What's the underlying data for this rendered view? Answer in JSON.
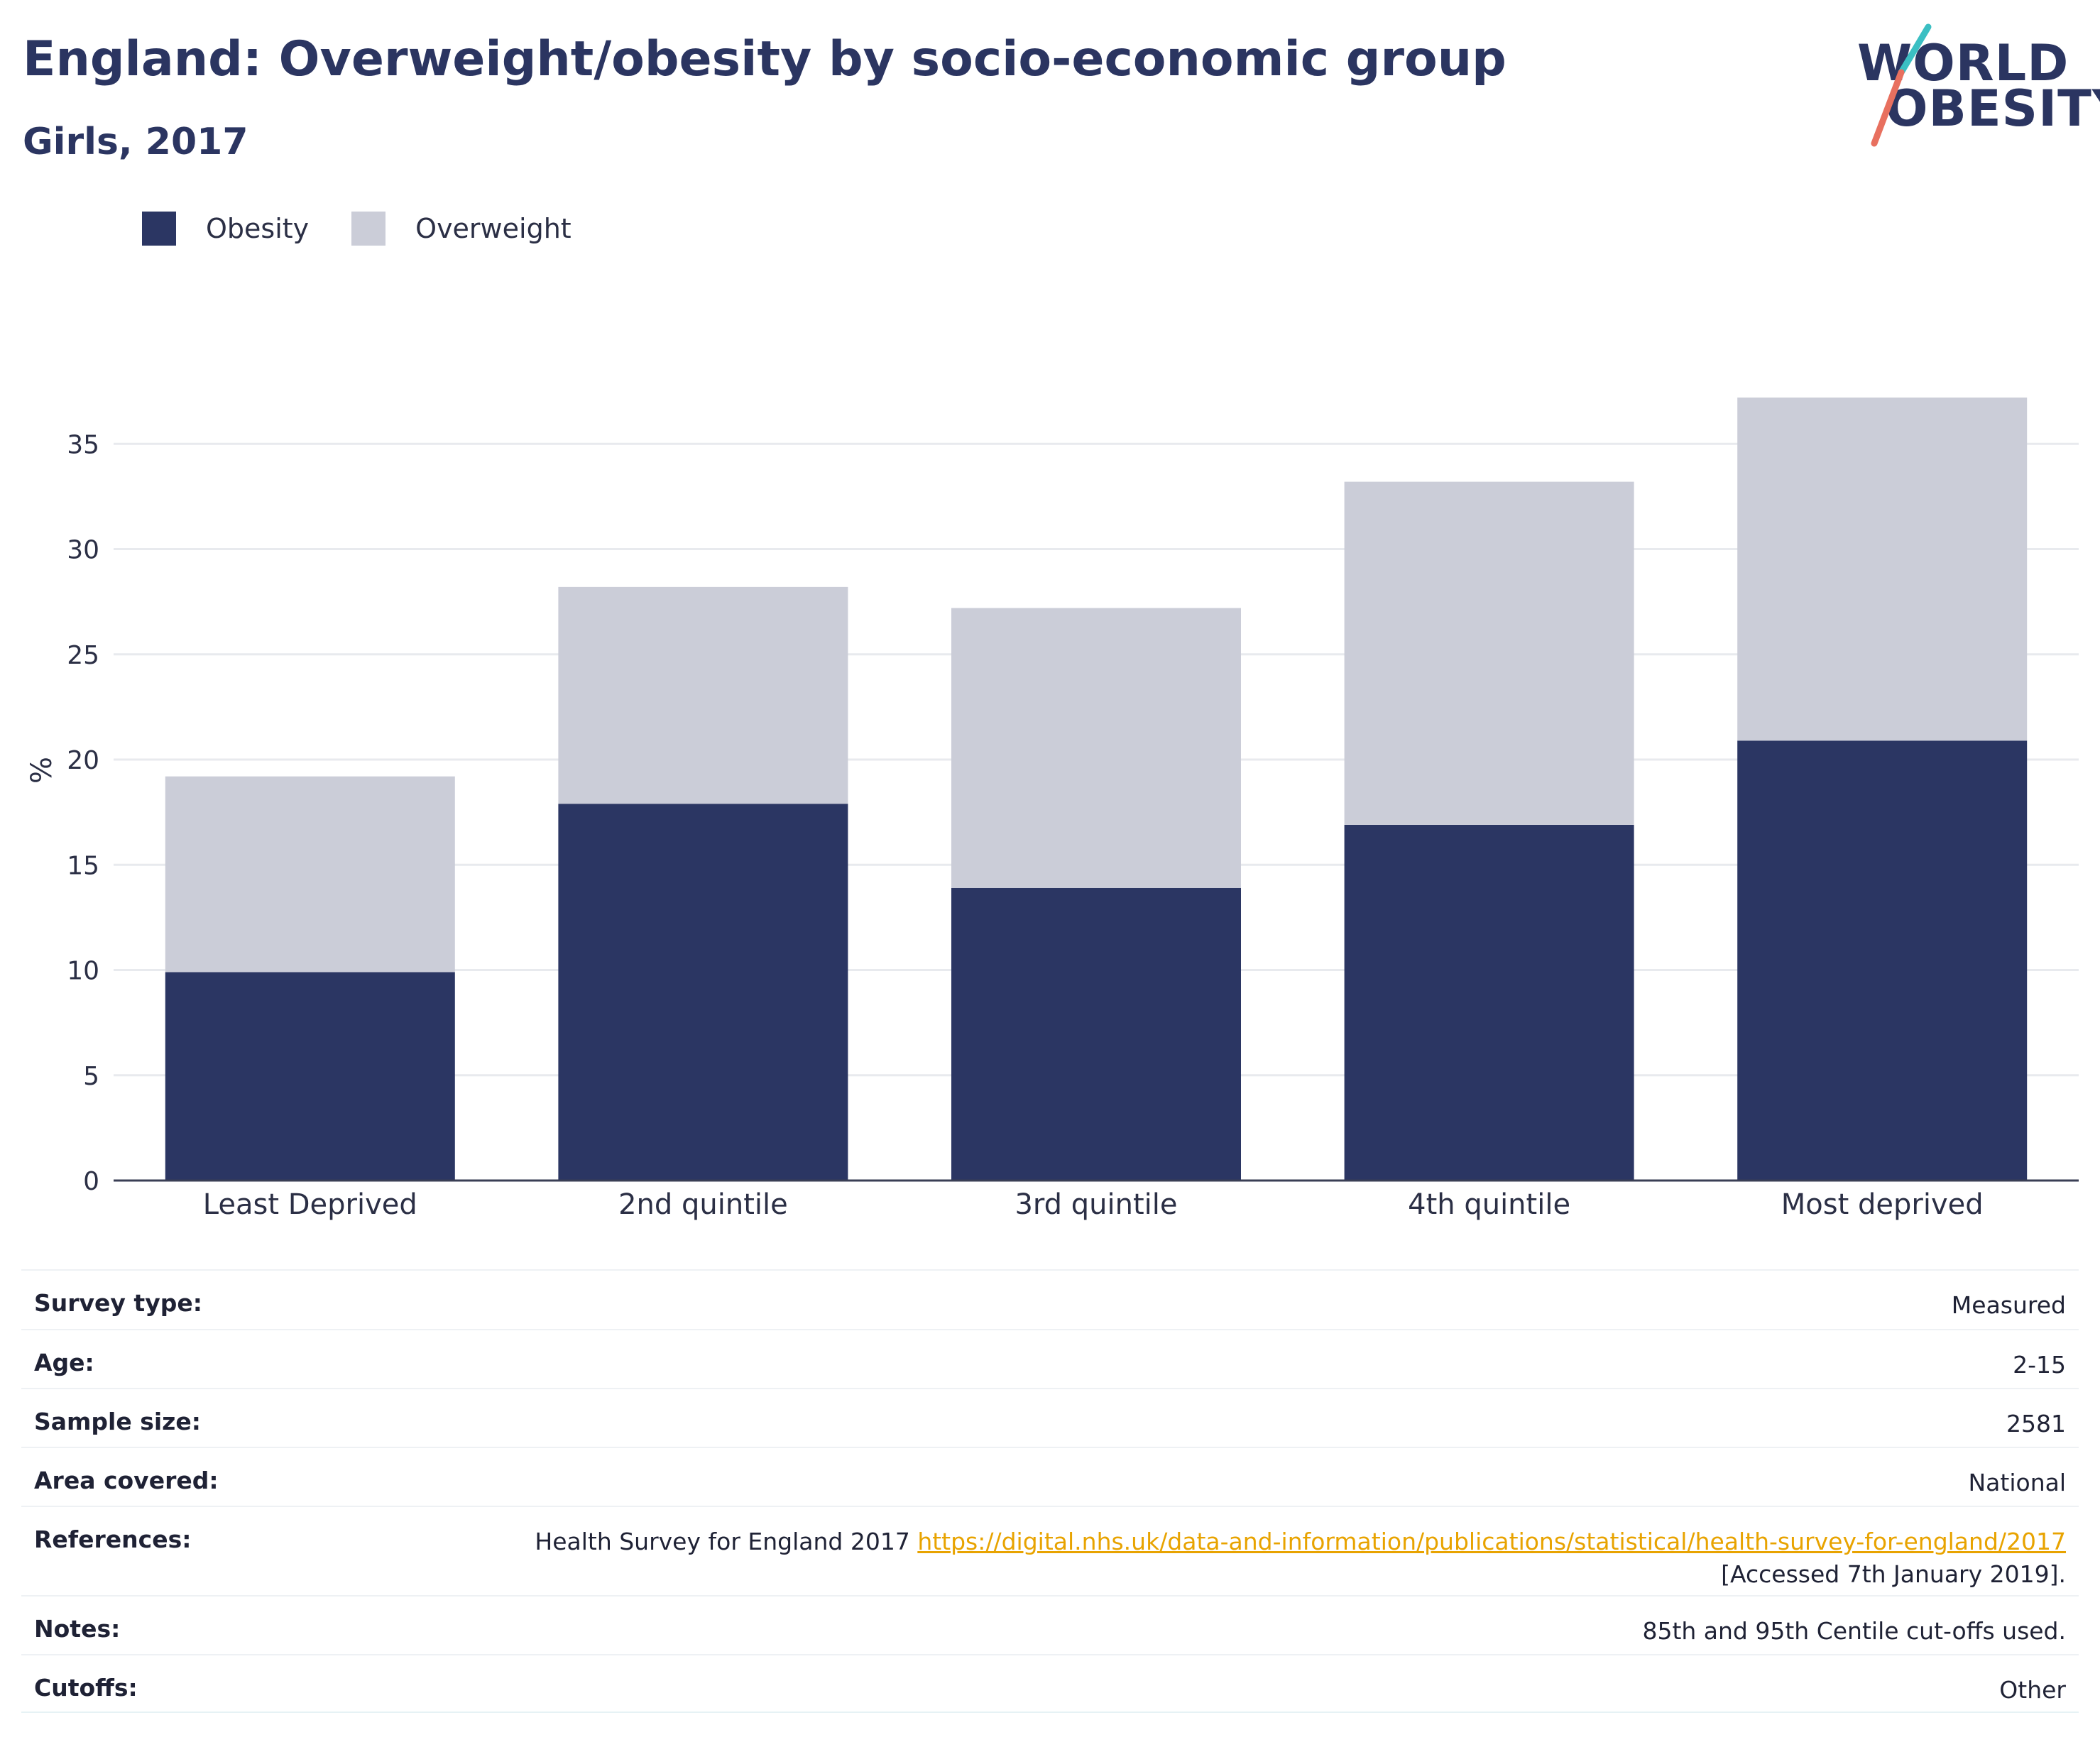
{
  "header": {
    "title": "England: Overweight/obesity by socio-economic group",
    "subtitle": "Girls, 2017"
  },
  "logo": {
    "line1": "WORLD",
    "line2": "OBESITY"
  },
  "colors": {
    "obesity": "#2b3663",
    "overweight": "#cbcdd8",
    "accent_teal": "#3bbfc3",
    "accent_coral": "#e8705f",
    "link": "#e8a300"
  },
  "legend": [
    {
      "label": "Obesity",
      "color": "#2b3663"
    },
    {
      "label": "Overweight",
      "color": "#cbcdd8"
    }
  ],
  "chart_data": {
    "type": "bar",
    "stacked": true,
    "categories": [
      "Least Deprived",
      "2nd quintile",
      "3rd quintile",
      "4th quintile",
      "Most deprived"
    ],
    "series": [
      {
        "name": "Obesity",
        "values": [
          9.9,
          17.9,
          13.9,
          16.9,
          20.9
        ]
      },
      {
        "name": "Overweight",
        "values": [
          9.3,
          10.3,
          13.3,
          16.3,
          16.3
        ]
      }
    ],
    "totals": [
      19.2,
      28.2,
      27.2,
      33.2,
      37.2
    ],
    "ylabel": "%",
    "ylim": [
      0,
      38
    ],
    "yticks": [
      0,
      5,
      10,
      15,
      20,
      25,
      30,
      35
    ],
    "grid": true,
    "legend_position": "top-left"
  },
  "info": [
    {
      "label": "Survey type:",
      "value": "Measured"
    },
    {
      "label": "Age:",
      "value": "2-15"
    },
    {
      "label": "Sample size:",
      "value": "2581"
    },
    {
      "label": "Area covered:",
      "value": "National"
    },
    {
      "label": "References:",
      "value": "Health Survey for England 2017",
      "link": "https://digital.nhs.uk/data-and-information/publications/statistical/health-survey-for-england/2017",
      "value_after": "[Accessed 7th January 2019]."
    },
    {
      "label": "Notes:",
      "value": "85th and 95th Centile cut-offs used."
    },
    {
      "label": "Cutoffs:",
      "value": "Other"
    }
  ]
}
